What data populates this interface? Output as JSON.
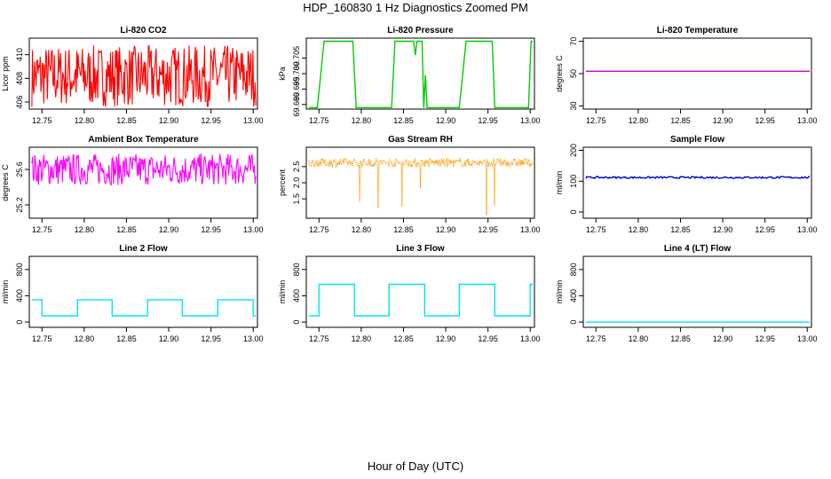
{
  "title": "HDP_160830  1 Hz Diagnostics Zoomed PM",
  "xlabel": "Hour of Day (UTC)",
  "chart_data": [
    {
      "type": "line",
      "title": "Li-820 CO2",
      "ylabel": "Licor ppm",
      "color": "#ff0000",
      "xlim": [
        12.735,
        13.005
      ],
      "ylim": [
        405.4,
        411.4
      ],
      "xticks": [
        "12.75",
        "12.80",
        "12.85",
        "12.90",
        "12.95",
        "13.00"
      ],
      "yticks": [
        "406",
        "408",
        "410"
      ],
      "pattern": "noise",
      "center": 408.2,
      "amp": 2.6,
      "n": 320
    },
    {
      "type": "line",
      "title": "Li-820 Pressure",
      "ylabel": "kPa",
      "color": "#00cc00",
      "xlim": [
        12.735,
        13.005
      ],
      "ylim": [
        69.6885,
        69.7115
      ],
      "xticks": [
        "12.75",
        "12.80",
        "12.85",
        "12.90",
        "12.95",
        "13.00"
      ],
      "yticks": [
        "69.690",
        "69.695",
        "69.700",
        "69.705"
      ],
      "pattern": "pressure"
    },
    {
      "type": "line",
      "title": "Li-820 Temperature",
      "ylabel": "degrees C",
      "color": "#cc00cc",
      "xlim": [
        12.735,
        13.005
      ],
      "ylim": [
        28,
        72
      ],
      "xticks": [
        "12.75",
        "12.80",
        "12.85",
        "12.90",
        "12.95",
        "13.00"
      ],
      "yticks": [
        "30",
        "50",
        "70"
      ],
      "pattern": "flat",
      "level": 51.5
    },
    {
      "type": "line",
      "title": "Ambient Box Temperature",
      "ylabel": "degrees C",
      "color": "#ff00ff",
      "xlim": [
        12.735,
        13.005
      ],
      "ylim": [
        25.05,
        25.85
      ],
      "xticks": [
        "12.75",
        "12.80",
        "12.85",
        "12.90",
        "12.95",
        "13.00"
      ],
      "yticks": [
        "25.2",
        "25.6"
      ],
      "pattern": "noise",
      "center": 25.6,
      "amp": 0.18,
      "n": 300
    },
    {
      "type": "line",
      "title": "Gas Stream RH",
      "ylabel": "percent",
      "color": "#ff9900",
      "xlim": [
        12.735,
        13.005
      ],
      "ylim": [
        0.9,
        3.1
      ],
      "xticks": [
        "12.75",
        "12.80",
        "12.85",
        "12.90",
        "12.95",
        "13.00"
      ],
      "yticks": [
        "1.5",
        "2.0",
        "2.5"
      ],
      "pattern": "rh",
      "center": 2.62,
      "amp": 0.22,
      "n": 340,
      "dips": [
        [
          12.798,
          1.4
        ],
        [
          12.82,
          1.2
        ],
        [
          12.848,
          1.25
        ],
        [
          12.87,
          1.85
        ],
        [
          12.948,
          1.0
        ],
        [
          12.958,
          1.3
        ]
      ]
    },
    {
      "type": "line",
      "title": "Sample Flow",
      "ylabel": "ml/min",
      "color": "#0000cc",
      "xlim": [
        12.735,
        13.005
      ],
      "ylim": [
        -20,
        210
      ],
      "xticks": [
        "12.75",
        "12.80",
        "12.85",
        "12.90",
        "12.95",
        "13.00"
      ],
      "yticks": [
        "0",
        "100",
        "200"
      ],
      "pattern": "flatnoise",
      "level": 112,
      "amp": 3
    },
    {
      "type": "line",
      "title": "Line 2 Flow",
      "ylabel": "ml/min",
      "color": "#00e5ee",
      "xlim": [
        12.735,
        13.005
      ],
      "ylim": [
        -80,
        1000
      ],
      "xticks": [
        "12.75",
        "12.80",
        "12.85",
        "12.90",
        "12.95",
        "13.00"
      ],
      "yticks": [
        "0",
        "400",
        "800"
      ],
      "pattern": "square",
      "high": 340,
      "low": 95,
      "steps": [
        [
          12.738,
          "h"
        ],
        [
          12.75,
          "l"
        ],
        [
          12.792,
          "h"
        ],
        [
          12.833,
          "l"
        ],
        [
          12.875,
          "h"
        ],
        [
          12.916,
          "l"
        ],
        [
          12.958,
          "h"
        ],
        [
          13.0,
          "l"
        ],
        [
          13.003,
          "l"
        ]
      ]
    },
    {
      "type": "line",
      "title": "Line 3 Flow",
      "ylabel": "ml/min",
      "color": "#00e5ee",
      "xlim": [
        12.735,
        13.005
      ],
      "ylim": [
        -80,
        1000
      ],
      "xticks": [
        "12.75",
        "12.80",
        "12.85",
        "12.90",
        "12.95",
        "13.00"
      ],
      "yticks": [
        "0",
        "400",
        "800"
      ],
      "pattern": "square",
      "high": 575,
      "low": 95,
      "steps": [
        [
          12.738,
          "l"
        ],
        [
          12.75,
          "h"
        ],
        [
          12.792,
          "l"
        ],
        [
          12.833,
          "h"
        ],
        [
          12.875,
          "l"
        ],
        [
          12.916,
          "h"
        ],
        [
          12.958,
          "l"
        ],
        [
          13.0,
          "h"
        ],
        [
          13.003,
          "h"
        ]
      ]
    },
    {
      "type": "line",
      "title": "Line 4 (LT) Flow",
      "ylabel": "ml/min",
      "color": "#00e5ee",
      "xlim": [
        12.735,
        13.005
      ],
      "ylim": [
        -80,
        1000
      ],
      "xticks": [
        "12.75",
        "12.80",
        "12.85",
        "12.90",
        "12.95",
        "13.00"
      ],
      "yticks": [
        "0",
        "400",
        "800"
      ],
      "pattern": "flat",
      "level": 0
    }
  ]
}
